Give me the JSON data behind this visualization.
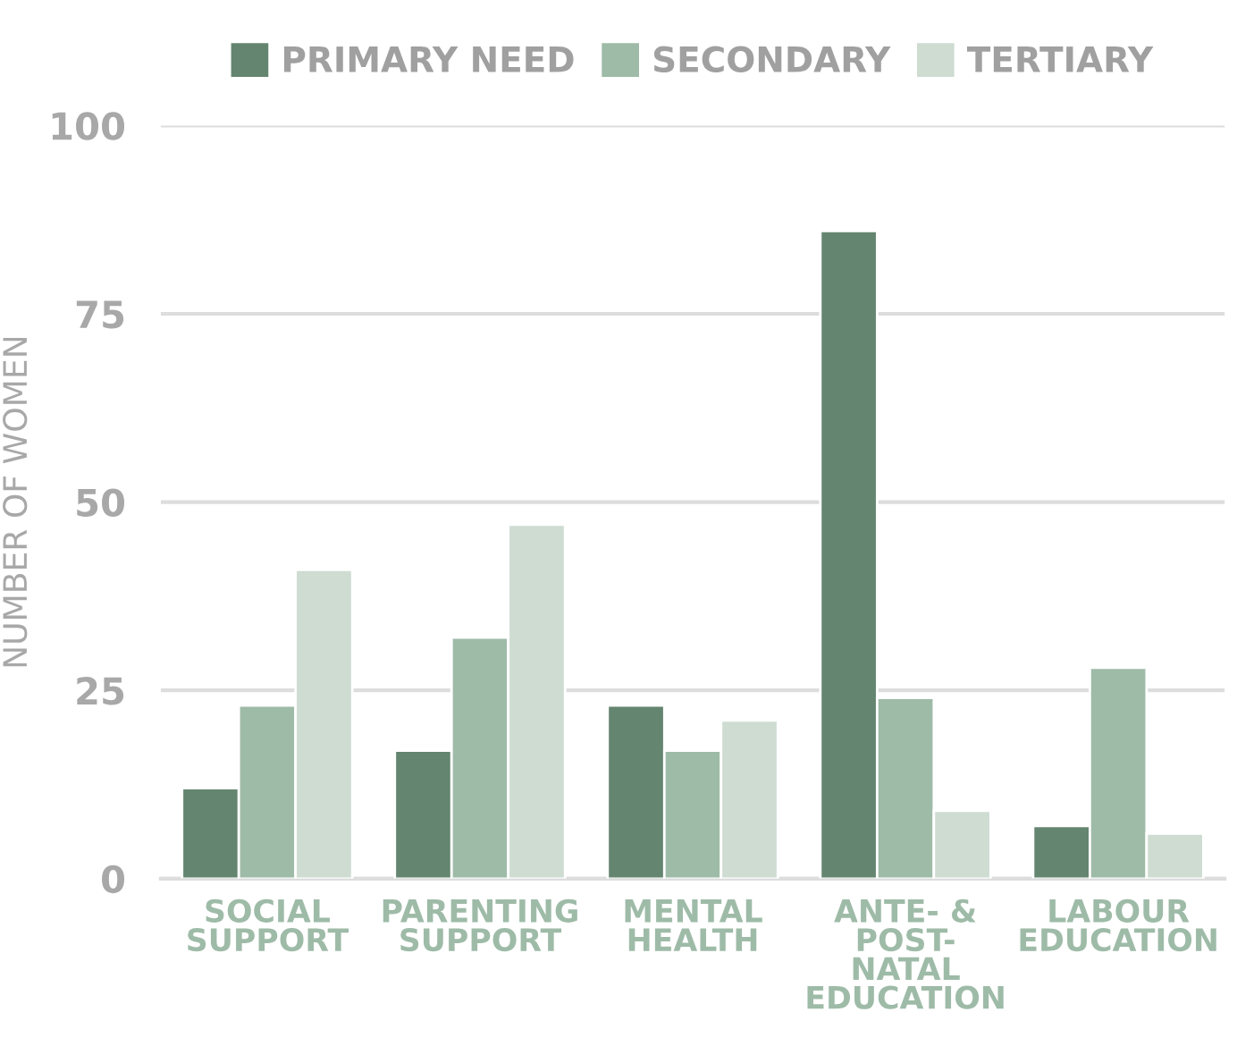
{
  "chart_data": {
    "type": "bar",
    "ylabel": "NUMBER OF WOMEN",
    "categories": [
      "SOCIAL\nSUPPORT",
      "PARENTING\nSUPPORT",
      "MENTAL\nHEALTH",
      "ANTE- &\nPOST-\nNATAL\nEDUCATION",
      "LABOUR\nEDUCATION"
    ],
    "series": [
      {
        "name": "PRIMARY NEED",
        "color": "#648570",
        "values": [
          12,
          17,
          23,
          86,
          7
        ]
      },
      {
        "name": "SECONDARY",
        "color": "#9ebba8",
        "values": [
          23,
          32,
          17,
          24,
          28
        ]
      },
      {
        "name": "TERTIARY",
        "color": "#cedcd2",
        "values": [
          41,
          47,
          21,
          9,
          6
        ]
      }
    ],
    "ylim": [
      0,
      100
    ],
    "yticks": [
      0,
      25,
      50,
      75,
      100
    ],
    "grid": "y",
    "legend": "top"
  }
}
